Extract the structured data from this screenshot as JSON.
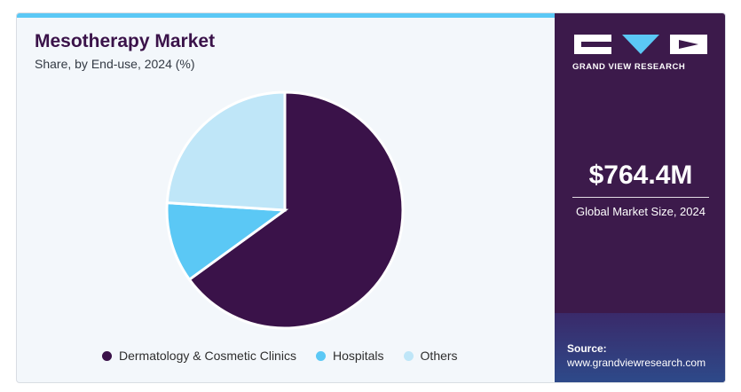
{
  "header": {
    "title": "Mesotherapy Market",
    "subtitle": "Share, by End-use, 2024 (%)"
  },
  "chart_data": {
    "type": "pie",
    "title": "Mesotherapy Market",
    "subtitle": "Share, by End-use, 2024 (%)",
    "categories": [
      "Dermatology & Cosmetic Clinics",
      "Hospitals",
      "Others"
    ],
    "values": [
      65.0,
      11.0,
      24.0
    ],
    "colors": [
      "#3a1249",
      "#5bc8f5",
      "#bfe6f8"
    ],
    "legend_position": "bottom"
  },
  "sidebar": {
    "brand": "GRAND VIEW RESEARCH",
    "market_size": "$764.4M",
    "market_size_label": "Global Market Size, 2024",
    "source_label": "Source:",
    "source_url": "www.grandviewresearch.com"
  }
}
